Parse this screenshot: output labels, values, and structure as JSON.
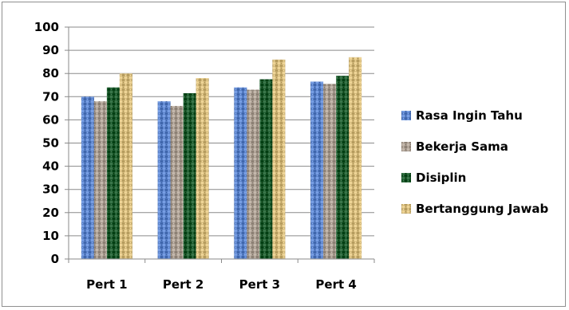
{
  "colors": {
    "rasa_ingin_tahu": "#5b82c8",
    "bekerja_sama": "#a89c90",
    "disiplin": "#1e5a2e",
    "bertanggung_jawab": "#d2b87a"
  },
  "chart_data": {
    "type": "bar",
    "categories": [
      "Pert 1",
      "Pert 2",
      "Pert 3",
      "Pert 4"
    ],
    "series": [
      {
        "name": "Rasa Ingin Tahu",
        "values": [
          70,
          68,
          74,
          76.5
        ]
      },
      {
        "name": "Bekerja Sama",
        "values": [
          68,
          66,
          73,
          75.5
        ]
      },
      {
        "name": "Disiplin",
        "values": [
          74,
          71.5,
          77.5,
          79
        ]
      },
      {
        "name": "Bertanggung Jawab",
        "values": [
          80,
          78,
          86,
          87
        ]
      }
    ],
    "ylim": [
      0,
      100
    ],
    "yticks": [
      0,
      10,
      20,
      30,
      40,
      50,
      60,
      70,
      80,
      90,
      100
    ],
    "title": "",
    "xlabel": "",
    "ylabel": "",
    "grid": true,
    "legend": "right",
    "texture": "patterned"
  }
}
